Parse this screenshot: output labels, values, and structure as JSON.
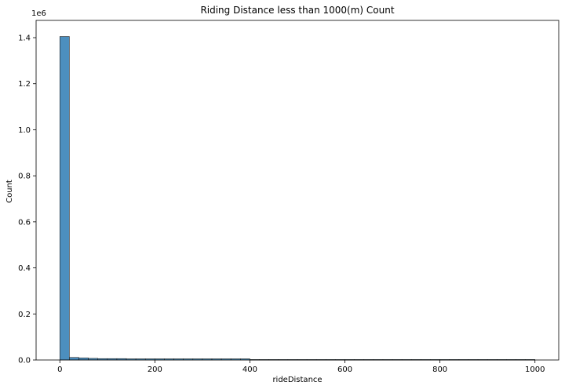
{
  "chart_data": {
    "type": "bar",
    "title": "Riding Distance less than 1000(m) Count",
    "xlabel": "rideDistance",
    "ylabel": "Count",
    "scale_label": "1e6",
    "xlim": [
      -50,
      1050
    ],
    "ylim": [
      0,
      1.475
    ],
    "x_ticks": [
      0,
      200,
      400,
      600,
      800,
      1000
    ],
    "y_ticks": [
      0.0,
      0.2,
      0.4,
      0.6,
      0.8,
      1.0,
      1.2,
      1.4
    ],
    "x_tick_labels": [
      "0",
      "200",
      "400",
      "600",
      "800",
      "1000"
    ],
    "y_tick_labels": [
      "0.0",
      "0.2",
      "0.4",
      "0.6",
      "0.8",
      "1.0",
      "1.2",
      "1.4"
    ],
    "grid": false,
    "bar_color": "#4c8fbf",
    "bar_edge_color": "#1f1f1f",
    "bin_width": 20,
    "bin_start": 0,
    "values": [
      1.405,
      0.011,
      0.009,
      0.007,
      0.006,
      0.006,
      0.006,
      0.005,
      0.005,
      0.005,
      0.005,
      0.005,
      0.005,
      0.005,
      0.005,
      0.005,
      0.005,
      0.005,
      0.005,
      0.005,
      0.002,
      0.002,
      0.002,
      0.002,
      0.002,
      0.002,
      0.002,
      0.002,
      0.002,
      0.002,
      0.002,
      0.002,
      0.002,
      0.002,
      0.002,
      0.002,
      0.002,
      0.002,
      0.002,
      0.002,
      0.002,
      0.002,
      0.002,
      0.002,
      0.002,
      0.002,
      0.002,
      0.002,
      0.002,
      0.002
    ]
  }
}
